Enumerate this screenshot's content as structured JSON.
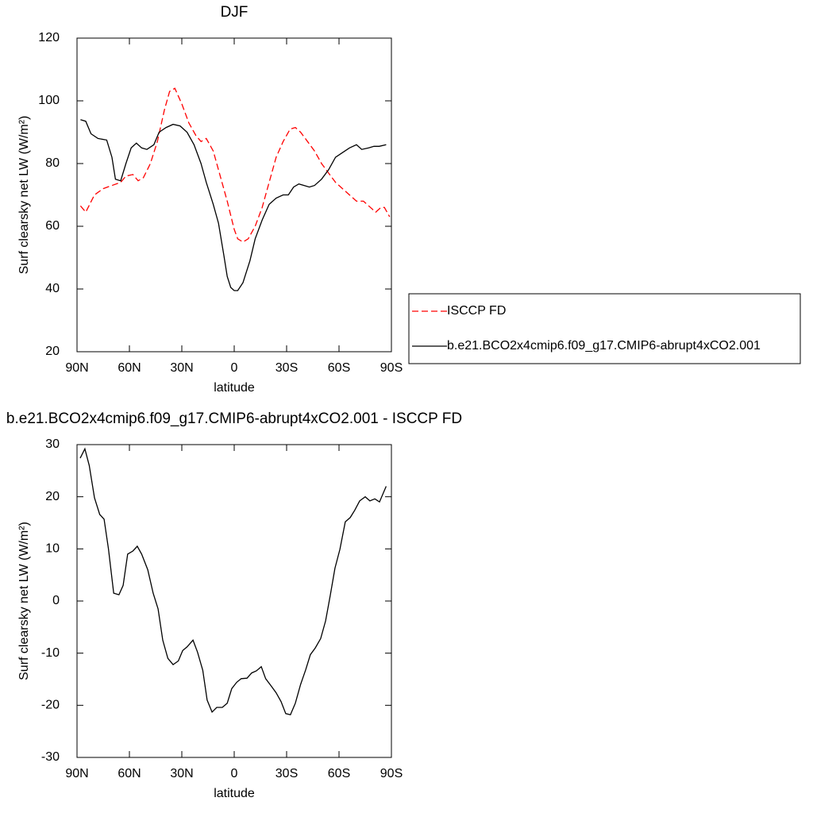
{
  "chart_data": [
    {
      "type": "line",
      "title": "DJF",
      "x_label": "latitude",
      "y_label": "Surf clearsky net LW (W/m²)",
      "xlim": [
        90,
        -90
      ],
      "ylim": [
        20,
        120
      ],
      "xticks": [
        {
          "value": 90,
          "label": "90N"
        },
        {
          "value": 60,
          "label": "60N"
        },
        {
          "value": 30,
          "label": "30N"
        },
        0,
        {
          "value": -30,
          "label": "30S"
        },
        {
          "value": -60,
          "label": "60S"
        },
        {
          "value": -90,
          "label": "90S"
        }
      ],
      "yticks": [
        20,
        40,
        60,
        80,
        100,
        120
      ],
      "series": [
        {
          "name": "ISCCP FD",
          "color": "#ff0000",
          "dash": true,
          "x": [
            88,
            85,
            80,
            75,
            70,
            65,
            62,
            58,
            55,
            52,
            48,
            44,
            40,
            37,
            34,
            30,
            26,
            22,
            19,
            16,
            12,
            8,
            4,
            0,
            -2,
            -5,
            -8,
            -12,
            -16,
            -20,
            -24,
            -28,
            -32,
            -35,
            -38,
            -42,
            -46,
            -50,
            -54,
            -58,
            -62,
            -66,
            -70,
            -74,
            -78,
            -81,
            -84,
            -86,
            -89
          ],
          "values": [
            66.5,
            64.5,
            70,
            72,
            73,
            74,
            76,
            76.5,
            74.5,
            75.5,
            80,
            87,
            97,
            103,
            104,
            99,
            93,
            89,
            87,
            88,
            84,
            76,
            68,
            59,
            56,
            55,
            56,
            60,
            66,
            74,
            82,
            87,
            91,
            91.5,
            90,
            87,
            84,
            80,
            77,
            74,
            72,
            70,
            68,
            68,
            66,
            64.5,
            66,
            66,
            63
          ]
        },
        {
          "name": "b.e21.BCO2x4cmip6.f09_g17.CMIP6-abrupt4xCO2.001",
          "color": "#000000",
          "dash": false,
          "x": [
            88,
            85,
            82,
            78,
            73,
            70,
            68,
            65,
            62,
            59,
            56,
            53,
            50,
            46,
            43,
            39,
            35,
            31,
            27,
            23,
            19,
            16,
            12,
            9,
            6,
            4,
            2,
            0,
            -2,
            -5,
            -9,
            -12,
            -16,
            -20,
            -24,
            -28,
            -31,
            -34,
            -37,
            -40,
            -43,
            -46,
            -50,
            -54,
            -58,
            -62,
            -66,
            -70,
            -73,
            -77,
            -80,
            -83,
            -87
          ],
          "values": [
            94,
            93.5,
            89.5,
            88,
            87.5,
            82,
            75,
            74.5,
            80,
            85,
            86.5,
            85,
            84.5,
            86,
            90,
            91.5,
            92.5,
            92,
            90,
            86,
            80,
            74,
            67,
            61,
            51,
            44,
            40.5,
            39.5,
            39.5,
            42,
            49,
            56,
            62,
            67,
            69,
            70,
            70,
            72.5,
            73.5,
            73,
            72.5,
            73,
            75,
            78,
            82,
            83.5,
            85,
            86,
            84.5,
            85,
            85.5,
            85.5,
            86
          ]
        }
      ]
    },
    {
      "type": "line",
      "title": "b.e21.BCO2x4cmip6.f09_g17.CMIP6-abrupt4xCO2.001 - ISCCP FD",
      "x_label": "latitude",
      "y_label": "Surf clearsky net LW (W/m²)",
      "xlim": [
        90,
        -90
      ],
      "ylim": [
        -30,
        30
      ],
      "xticks": [
        {
          "value": 90,
          "label": "90N"
        },
        {
          "value": 60,
          "label": "60N"
        },
        {
          "value": 30,
          "label": "30N"
        },
        0,
        {
          "value": -30,
          "label": "30S"
        },
        {
          "value": -60,
          "label": "60S"
        },
        {
          "value": -90,
          "label": "90S"
        }
      ],
      "yticks": [
        -30,
        -20,
        -10,
        0,
        10,
        20,
        30
      ],
      "color": "#000000",
      "x": [
        88.2,
        85.5,
        83,
        80,
        77,
        74.5,
        72,
        69,
        66,
        63.6,
        61,
        58,
        55.5,
        53,
        49.5,
        46.4,
        43.6,
        40.9,
        38,
        35,
        32,
        29.5,
        27,
        23.6,
        21,
        18,
        15.5,
        12.7,
        10,
        6.8,
        4,
        1.4,
        -1.4,
        -4,
        -7.3,
        -10,
        -12.7,
        -15.5,
        -18,
        -21.4,
        -24,
        -26.8,
        -29.5,
        -32.2,
        -35,
        -38,
        -40.9,
        -43.6,
        -46.4,
        -49.5,
        -52.3,
        -55,
        -57.7,
        -60.5,
        -63.6,
        -66.4,
        -69,
        -71.8,
        -75,
        -77.7,
        -80.5,
        -83.2,
        -87
      ],
      "values": [
        27.4,
        29.2,
        26,
        19.8,
        16.6,
        15.7,
        10,
        1.5,
        1.2,
        3,
        9,
        9.6,
        10.5,
        9,
        6,
        1.5,
        -1.5,
        -7.5,
        -11,
        -12.2,
        -11.5,
        -9.5,
        -8.8,
        -7.5,
        -9.8,
        -13.3,
        -19,
        -21.3,
        -20.4,
        -20.4,
        -19.6,
        -16.8,
        -15.6,
        -14.9,
        -14.8,
        -13.8,
        -13.4,
        -12.6,
        -14.9,
        -16.4,
        -17.6,
        -19.3,
        -21.6,
        -21.8,
        -19.6,
        -16,
        -13.2,
        -10.3,
        -9,
        -7.2,
        -3.8,
        1.1,
        6.3,
        9.9,
        15.2,
        16,
        17.4,
        19.2,
        20,
        19.2,
        19.6,
        19,
        22
      ]
    }
  ]
}
